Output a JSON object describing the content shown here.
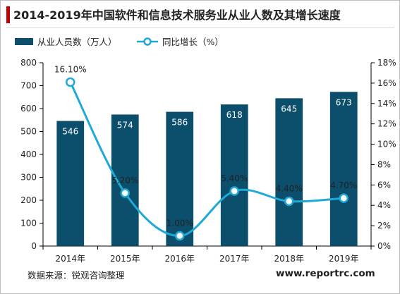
{
  "page": {
    "title": "2014-2019年中国软件和信息技术服务业从业人数及其增长速度",
    "source": "数据来源：锐观咨询整理",
    "website": "www.reportrc.com"
  },
  "chart_data": {
    "type": "bar",
    "categories": [
      "2014年",
      "2015年",
      "2016年",
      "2017年",
      "2018年",
      "2019年"
    ],
    "series": [
      {
        "name": "从业人员数（万人）",
        "type": "bar",
        "axis": "left",
        "values": [
          546,
          574,
          586,
          618,
          645,
          673
        ],
        "labels": [
          "546",
          "574",
          "586",
          "618",
          "645",
          "673"
        ],
        "color": "#0b4f6c"
      },
      {
        "name": "同比增长（%）",
        "type": "line",
        "axis": "right",
        "values": [
          16.1,
          5.2,
          1.0,
          5.4,
          4.4,
          4.7
        ],
        "labels": [
          "16.10%",
          "5.20%",
          "1.00%",
          "5.40%",
          "4.40%",
          "4.70%"
        ],
        "color": "#1fa9d6"
      }
    ],
    "y_left": {
      "min": 0,
      "max": 800,
      "ticks": [
        "0",
        "100",
        "200",
        "300",
        "400",
        "500",
        "600",
        "700",
        "800"
      ]
    },
    "y_right": {
      "min": 0,
      "max": 18,
      "ticks": [
        "0%",
        "2%",
        "4%",
        "6%",
        "8%",
        "10%",
        "12%",
        "14%",
        "16%",
        "18%"
      ]
    },
    "grid": false,
    "legend": "top-left"
  }
}
